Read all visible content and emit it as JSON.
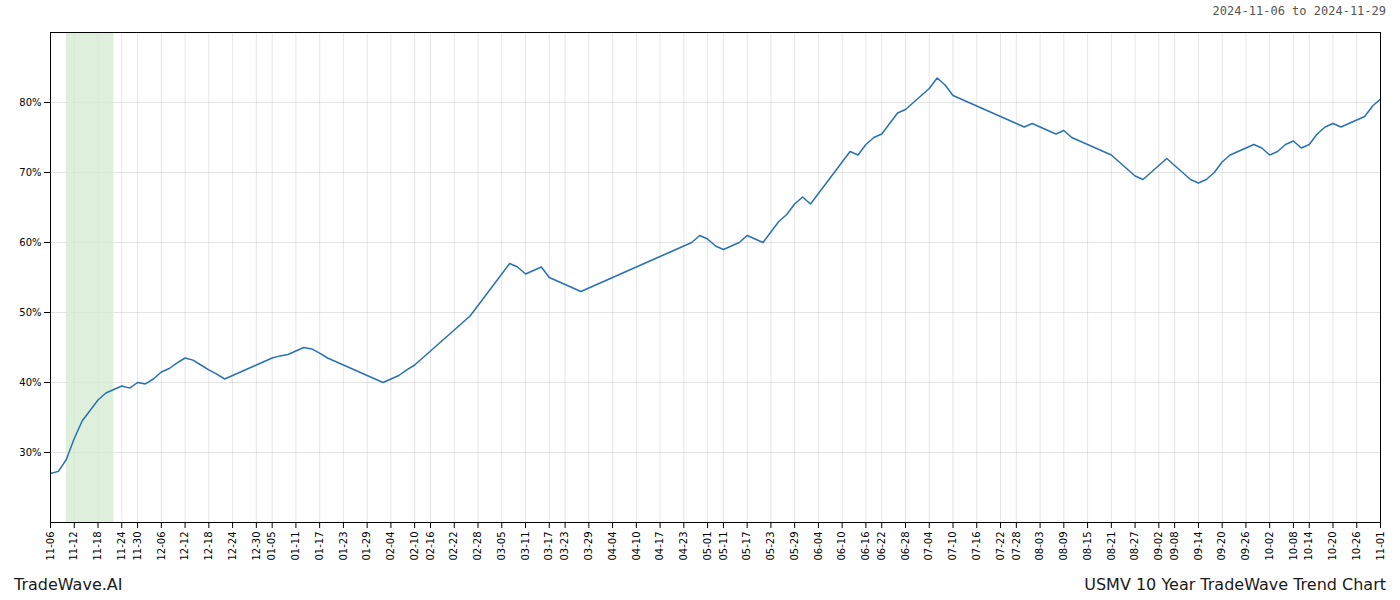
{
  "chart_data": {
    "type": "line",
    "title": "USMV 10 Year TradeWave Trend Chart",
    "annotations": [
      "2024-11-06 to 2024-11-29",
      "TradeWave.AI"
    ],
    "color": "#2871b5",
    "grid": true,
    "ylim": [
      20,
      90
    ],
    "yticks": [
      {
        "value": 30,
        "label": "30%"
      },
      {
        "value": 40,
        "label": "40%"
      },
      {
        "value": 50,
        "label": "50%"
      },
      {
        "value": 60,
        "label": "60%"
      },
      {
        "value": 70,
        "label": "70%"
      },
      {
        "value": 80,
        "label": "80%"
      }
    ],
    "highlight": {
      "start": 2,
      "end": 8,
      "color": "#d6ecd2"
    },
    "categories": [
      "11-06",
      null,
      null,
      "11-12",
      null,
      null,
      "11-18",
      null,
      null,
      "11-24",
      null,
      "11-30",
      null,
      null,
      "12-06",
      null,
      null,
      "12-12",
      null,
      null,
      "12-18",
      null,
      null,
      "12-24",
      null,
      null,
      "12-30",
      null,
      "01-05",
      null,
      null,
      "01-11",
      null,
      null,
      "01-17",
      null,
      null,
      "01-23",
      null,
      null,
      "01-29",
      null,
      null,
      "02-04",
      null,
      null,
      "02-10",
      null,
      "02-16",
      null,
      null,
      "02-22",
      null,
      null,
      "02-28",
      null,
      null,
      "03-05",
      null,
      null,
      "03-11",
      null,
      null,
      "03-17",
      null,
      "03-23",
      null,
      null,
      "03-29",
      null,
      null,
      "04-04",
      null,
      null,
      "04-10",
      null,
      null,
      "04-17",
      null,
      null,
      "04-23",
      null,
      null,
      "05-01",
      null,
      "05-11",
      null,
      null,
      "05-17",
      null,
      null,
      "05-23",
      null,
      null,
      "05-29",
      null,
      null,
      "06-04",
      null,
      null,
      "06-10",
      null,
      null,
      "06-16",
      null,
      "06-22",
      null,
      null,
      "06-28",
      null,
      null,
      "07-04",
      null,
      null,
      "07-10",
      null,
      null,
      "07-16",
      null,
      null,
      "07-22",
      null,
      "07-28",
      null,
      null,
      "08-03",
      null,
      null,
      "08-09",
      null,
      null,
      "08-15",
      null,
      null,
      "08-21",
      null,
      null,
      "08-27",
      null,
      null,
      "09-02",
      null,
      "09-08",
      null,
      null,
      "09-14",
      null,
      null,
      "09-20",
      null,
      null,
      "09-26",
      null,
      null,
      "10-02",
      null,
      null,
      "10-08",
      null,
      "10-14",
      null,
      null,
      "10-20",
      null,
      null,
      "10-26",
      null,
      null,
      "11-01"
    ],
    "values": [
      27.0,
      27.3,
      29.0,
      32.0,
      34.5,
      36.0,
      37.5,
      38.5,
      39.0,
      39.5,
      39.2,
      40.0,
      39.8,
      40.5,
      41.5,
      42.0,
      42.8,
      43.5,
      43.2,
      42.5,
      41.8,
      41.2,
      40.5,
      41.0,
      41.5,
      42.0,
      42.5,
      43.0,
      43.5,
      43.8,
      44.0,
      44.5,
      45.0,
      44.8,
      44.2,
      43.5,
      43.0,
      42.5,
      42.0,
      41.5,
      41.0,
      40.5,
      40.0,
      40.5,
      41.0,
      41.8,
      42.5,
      43.5,
      44.5,
      45.5,
      46.5,
      47.5,
      48.5,
      49.5,
      51.0,
      52.5,
      54.0,
      55.5,
      57.0,
      56.5,
      55.5,
      56.0,
      56.5,
      55.0,
      54.5,
      54.0,
      53.5,
      53.0,
      53.5,
      54.0,
      54.5,
      55.0,
      55.5,
      56.0,
      56.5,
      57.0,
      57.5,
      58.0,
      58.5,
      59.0,
      59.5,
      60.0,
      61.0,
      60.5,
      59.5,
      59.0,
      59.5,
      60.0,
      61.0,
      60.5,
      60.0,
      61.5,
      63.0,
      64.0,
      65.5,
      66.5,
      65.5,
      67.0,
      68.5,
      70.0,
      71.5,
      73.0,
      72.5,
      74.0,
      75.0,
      75.5,
      77.0,
      78.5,
      79.0,
      80.0,
      81.0,
      82.0,
      83.5,
      82.5,
      81.0,
      80.5,
      80.0,
      79.5,
      79.0,
      78.5,
      78.0,
      77.5,
      77.0,
      76.5,
      77.0,
      76.5,
      76.0,
      75.5,
      76.0,
      75.0,
      74.5,
      74.0,
      73.5,
      73.0,
      72.5,
      71.5,
      70.5,
      69.5,
      69.0,
      70.0,
      71.0,
      72.0,
      71.0,
      70.0,
      69.0,
      68.5,
      69.0,
      70.0,
      71.5,
      72.5,
      73.0,
      73.5,
      74.0,
      73.5,
      72.5,
      73.0,
      74.0,
      74.5,
      73.5,
      74.0,
      75.5,
      76.5,
      77.0,
      76.5,
      77.0,
      77.5,
      78.0,
      79.5,
      80.5
    ]
  }
}
